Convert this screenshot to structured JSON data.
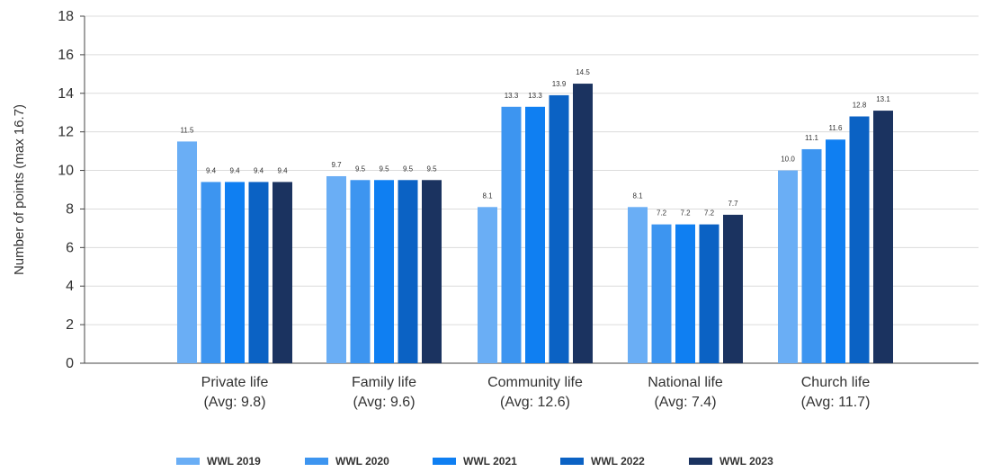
{
  "chart_data": {
    "type": "bar",
    "ylabel": "Number of points (max 16.7)",
    "ylim": [
      0,
      18
    ],
    "yticks": [
      0,
      2,
      4,
      6,
      8,
      10,
      12,
      14,
      16,
      18
    ],
    "grid": true,
    "legend_position": "bottom",
    "categories": [
      [
        "Private life",
        "(Avg: 9.8)"
      ],
      [
        "Family life",
        "(Avg: 9.6)"
      ],
      [
        "Community life",
        "(Avg: 12.6)"
      ],
      [
        "National life",
        "(Avg: 7.4)"
      ],
      [
        "Church life",
        "(Avg: 11.7)"
      ]
    ],
    "series": [
      {
        "name": "WWL 2019",
        "color": "#6aaef5",
        "values": [
          11.5,
          9.7,
          8.1,
          8.1,
          10.0
        ],
        "labels": [
          "11.5",
          "9.7",
          "8.1",
          "8.1",
          "10.0"
        ]
      },
      {
        "name": "WWL 2020",
        "color": "#3d95f0",
        "values": [
          9.4,
          9.5,
          13.3,
          7.2,
          11.1
        ],
        "labels": [
          "9.4",
          "9.5",
          "13.3",
          "7.2",
          "11.1"
        ]
      },
      {
        "name": "WWL 2021",
        "color": "#0f7ff2",
        "values": [
          9.4,
          9.5,
          13.3,
          7.2,
          11.6
        ],
        "labels": [
          "9.4",
          "9.5",
          "13.3",
          "7.2",
          "11.6"
        ]
      },
      {
        "name": "WWL 2022",
        "color": "#0b62c4",
        "values": [
          9.4,
          9.5,
          13.9,
          7.2,
          12.8
        ],
        "labels": [
          "9.4",
          "9.5",
          "13.9",
          "7.2",
          "12.8"
        ]
      },
      {
        "name": "WWL 2023",
        "color": "#1b3360",
        "values": [
          9.4,
          9.5,
          14.5,
          7.7,
          13.1
        ],
        "labels": [
          "9.4",
          "9.5",
          "14.5",
          "7.7",
          "13.1"
        ]
      }
    ]
  }
}
